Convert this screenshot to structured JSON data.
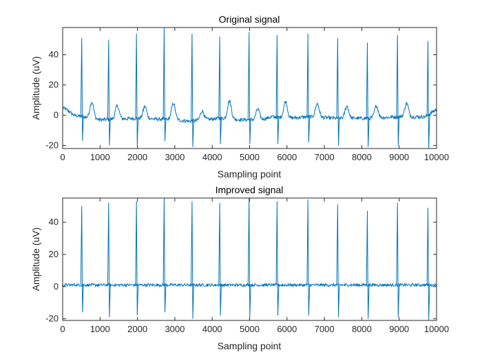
{
  "chart_data": [
    {
      "type": "line",
      "title": "Original signal",
      "xlabel": "Sampling point",
      "ylabel": "Amplitude (uV)",
      "xlim": [
        0,
        10000
      ],
      "ylim": [
        -22,
        58
      ],
      "xticks": [
        0,
        1000,
        2000,
        3000,
        4000,
        5000,
        6000,
        7000,
        8000,
        9000,
        10000
      ],
      "yticks": [
        -20,
        0,
        20,
        40
      ],
      "grid": false,
      "legend": "none",
      "color": "#0072BD",
      "series": [
        {
          "r_peaks": [
            {
              "x": 510,
              "max": 51,
              "min": -17
            },
            {
              "x": 1230,
              "max": 50,
              "min": -20
            },
            {
              "x": 1975,
              "max": 54,
              "min": -20
            },
            {
              "x": 2715,
              "max": 58,
              "min": -17
            },
            {
              "x": 3460,
              "max": 54,
              "min": -21
            },
            {
              "x": 4200,
              "max": 52,
              "min": -19
            },
            {
              "x": 4985,
              "max": 55,
              "min": -19
            },
            {
              "x": 5735,
              "max": 53,
              "min": -19
            },
            {
              "x": 6560,
              "max": 54,
              "min": -18
            },
            {
              "x": 7355,
              "max": 51,
              "min": -20
            },
            {
              "x": 8150,
              "max": 48,
              "min": -21
            },
            {
              "x": 8955,
              "max": 53,
              "min": -20
            },
            {
              "x": 9770,
              "max": 49,
              "min": -22
            }
          ],
          "t_waves": [
            {
              "x": 780,
              "amp": 11
            },
            {
              "x": 1460,
              "amp": 9
            },
            {
              "x": 2200,
              "amp": 8
            },
            {
              "x": 2960,
              "amp": 11
            },
            {
              "x": 3730,
              "amp": 6
            },
            {
              "x": 4460,
              "amp": 12
            },
            {
              "x": 5220,
              "amp": 7
            },
            {
              "x": 5960,
              "amp": 11
            },
            {
              "x": 6810,
              "amp": 9
            },
            {
              "x": 7600,
              "amp": 8
            },
            {
              "x": 8390,
              "amp": 8
            },
            {
              "x": 9200,
              "amp": 9
            }
          ],
          "baseline": [
            [
              0,
              5
            ],
            [
              150,
              3
            ],
            [
              300,
              0
            ],
            [
              1000,
              -3
            ],
            [
              2000,
              -2
            ],
            [
              3000,
              -3
            ],
            [
              3400,
              -4
            ],
            [
              4200,
              -2
            ],
            [
              4800,
              -3
            ],
            [
              5300,
              -3
            ],
            [
              5600,
              -1
            ],
            [
              6000,
              -2
            ],
            [
              6600,
              -1
            ],
            [
              7300,
              -2
            ],
            [
              8200,
              -2
            ],
            [
              9000,
              -1
            ],
            [
              9700,
              -1
            ],
            [
              10000,
              4
            ]
          ]
        }
      ]
    },
    {
      "type": "line",
      "title": "Improved signal",
      "xlabel": "Sampling point",
      "ylabel": "Amplitude (uV)",
      "xlim": [
        0,
        10000
      ],
      "ylim": [
        -21,
        55
      ],
      "xticks": [
        0,
        1000,
        2000,
        3000,
        4000,
        5000,
        6000,
        7000,
        8000,
        9000,
        10000
      ],
      "yticks": [
        -20,
        0,
        20,
        40
      ],
      "grid": false,
      "legend": "none",
      "color": "#0072BD",
      "series": [
        {
          "r_peaks": [
            {
              "x": 510,
              "max": 50,
              "min": -16
            },
            {
              "x": 1230,
              "max": 52,
              "min": -19
            },
            {
              "x": 1975,
              "max": 53,
              "min": -18
            },
            {
              "x": 2715,
              "max": 55,
              "min": -16
            },
            {
              "x": 3460,
              "max": 53,
              "min": -20
            },
            {
              "x": 4200,
              "max": 52,
              "min": -18
            },
            {
              "x": 4985,
              "max": 55,
              "min": -19
            },
            {
              "x": 5735,
              "max": 53,
              "min": -18
            },
            {
              "x": 6560,
              "max": 54,
              "min": -18
            },
            {
              "x": 7355,
              "max": 51,
              "min": -19
            },
            {
              "x": 8150,
              "max": 47,
              "min": -20
            },
            {
              "x": 8955,
              "max": 52,
              "min": -19
            },
            {
              "x": 9770,
              "max": 49,
              "min": -21
            }
          ],
          "t_waves": [],
          "baseline": [
            [
              0,
              1
            ],
            [
              10000,
              1
            ]
          ]
        }
      ]
    }
  ]
}
